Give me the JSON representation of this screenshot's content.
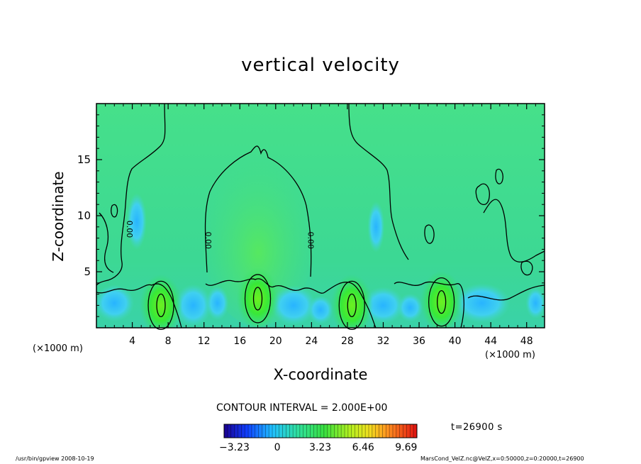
{
  "chart_data": {
    "type": "heatmap",
    "title": "vertical velocity",
    "xlabel": "X-coordinate",
    "ylabel": "Z-coordinate",
    "x_unit_label": "(×1000 m)",
    "xlim": [
      0,
      50
    ],
    "ylim": [
      0,
      20
    ],
    "x_ticks": [
      4,
      8,
      12,
      16,
      20,
      24,
      28,
      32,
      36,
      40,
      44,
      48
    ],
    "x_tick_labels": [
      "4",
      "8",
      "12",
      "16",
      "20",
      "24",
      "28",
      "32",
      "36",
      "40",
      "44",
      "48"
    ],
    "y_ticks": [
      5,
      10,
      15
    ],
    "y_tick_labels": [
      "5",
      "10",
      "15"
    ],
    "contour_interval": "CONTOUR INTERVAL = 2.000E+00",
    "contour_labels": [
      "0.00",
      "0.00",
      "0.00",
      "0.00"
    ],
    "colorbar": {
      "range": [
        -4.0,
        10.5
      ],
      "ticks": [
        -3.23,
        0,
        3.23,
        6.46,
        9.69
      ],
      "tick_labels": [
        "−3.23",
        "0",
        "3.23",
        "6.46",
        "9.69"
      ]
    },
    "updraft_maxima": [
      {
        "x": 7.2,
        "z": 2.0
      },
      {
        "x": 18.0,
        "z": 2.6
      },
      {
        "x": 28.5,
        "z": 2.0
      },
      {
        "x": 38.5,
        "z": 2.3
      }
    ],
    "time_label": "t=26900 s"
  },
  "footer": {
    "left": "/usr/bin/gpview   2008-10-19",
    "right": "MarsCond_VelZ.nc@VelZ,x=0:50000,z=0:20000,t=26900"
  },
  "colors": {
    "background_field": "#3ce08a",
    "updraft": "#2ee83c",
    "downdraft": "#3ec8ff",
    "contour": "#000000"
  }
}
